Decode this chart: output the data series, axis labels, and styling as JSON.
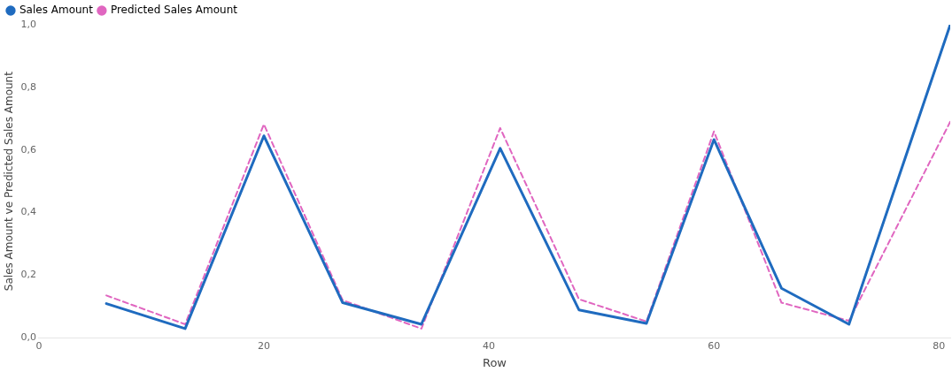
{
  "chart_data": {
    "type": "line",
    "xlabel": "Row",
    "ylabel": "Sales Amount ve Predicted Sales Amount",
    "x": [
      6,
      13,
      20,
      27,
      34,
      41,
      48,
      54,
      60,
      66,
      72,
      81
    ],
    "series": [
      {
        "name": "Sales Amount",
        "color": "#1f6bbf",
        "line_style": "solid",
        "values": [
          0.109,
          0.029,
          0.645,
          0.112,
          0.043,
          0.605,
          0.089,
          0.046,
          0.633,
          0.158,
          0.043,
          1.0
        ]
      },
      {
        "name": "Predicted Sales Amount",
        "color": "#e066c0",
        "line_style": "dashed",
        "values": [
          0.135,
          0.043,
          0.682,
          0.12,
          0.029,
          0.67,
          0.123,
          0.052,
          0.659,
          0.112,
          0.054,
          0.69
        ]
      }
    ],
    "xlim": [
      0,
      81
    ],
    "xticks": [
      0,
      20,
      40,
      60,
      80
    ],
    "ylim": [
      0,
      1
    ],
    "yticks": [
      {
        "value": 0,
        "label": "0,0"
      },
      {
        "value": 0.2,
        "label": "0,2"
      },
      {
        "value": 0.4,
        "label": "0,4"
      },
      {
        "value": 0.6,
        "label": "0,6"
      },
      {
        "value": 0.8,
        "label": "0,8"
      },
      {
        "value": 1,
        "label": "1,0"
      }
    ],
    "grid": false,
    "legend": "top left",
    "marker": "none"
  }
}
